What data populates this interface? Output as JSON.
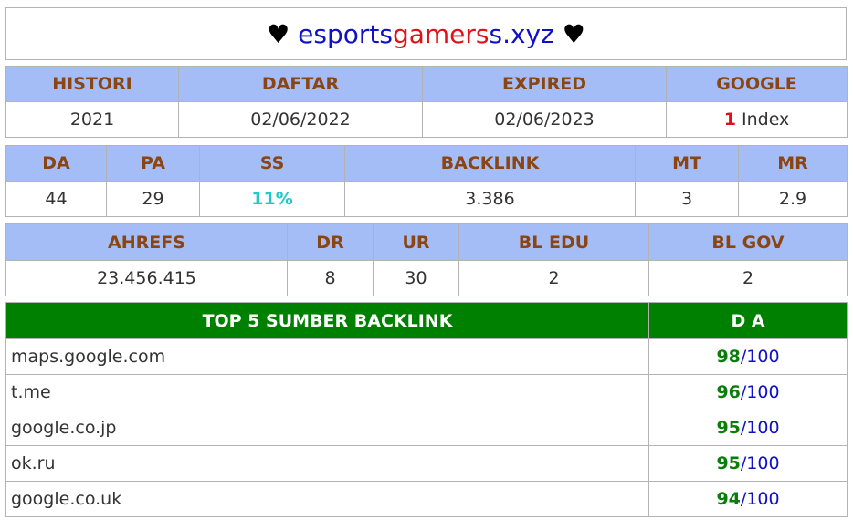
{
  "title": {
    "heart_left": "♥",
    "domain_part1": "esports",
    "domain_part2": "gamers",
    "domain_part3": "s.xyz",
    "heart_right": "♥"
  },
  "info": {
    "headers": [
      "HISTORI",
      "DAFTAR",
      "EXPIRED",
      "GOOGLE"
    ],
    "histori": "2021",
    "daftar": "02/06/2022",
    "expired": "02/06/2023",
    "google_count": "1",
    "google_label": "Index"
  },
  "metrics": {
    "headers": [
      "DA",
      "PA",
      "SS",
      "BACKLINK",
      "MT",
      "MR"
    ],
    "values": [
      "44",
      "29",
      "11%",
      "3.386",
      "3",
      "2.9"
    ]
  },
  "ahrefs": {
    "headers": [
      "AHREFS",
      "DR",
      "UR",
      "BL EDU",
      "BL GOV"
    ],
    "values": [
      "23.456.415",
      "8",
      "30",
      "2",
      "2"
    ]
  },
  "backlinks": {
    "header_source": "TOP 5 SUMBER BACKLINK",
    "header_da": "D A",
    "rows": [
      {
        "source": "maps.google.com",
        "da": "98",
        "max": "/100"
      },
      {
        "source": "t.me",
        "da": "96",
        "max": "/100"
      },
      {
        "source": "google.co.jp",
        "da": "95",
        "max": "/100"
      },
      {
        "source": "ok.ru",
        "da": "95",
        "max": "/100"
      },
      {
        "source": "google.co.uk",
        "da": "94",
        "max": "/100"
      }
    ]
  },
  "colors": {
    "header_bg": "#a4bdf7",
    "header_text": "#8b4513",
    "backlink_header_bg": "#008000",
    "accent_red": "#e0101a",
    "accent_blue": "#1010c8",
    "accent_cyan": "#20c8c8",
    "accent_green": "#0b7d0b"
  }
}
